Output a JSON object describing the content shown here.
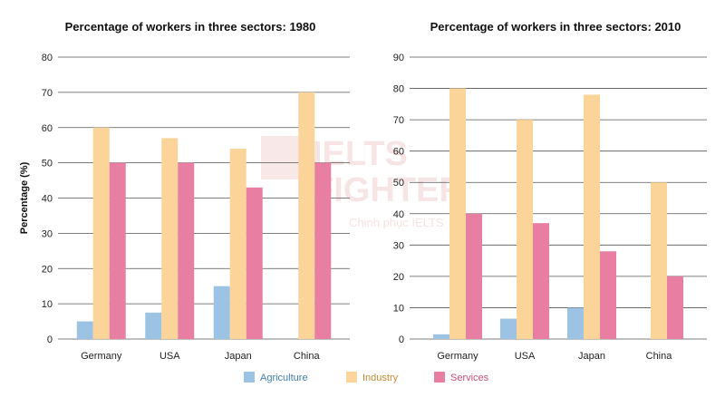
{
  "watermark": {
    "lines": [
      "IELTS",
      "FIGHTER"
    ],
    "sub": "Chinh phục IELTS"
  },
  "legend": [
    {
      "name": "Agriculture",
      "color": "#9cc3e4",
      "text_color": "#3f7fb0"
    },
    {
      "name": "Industry",
      "color": "#fbd49a",
      "text_color": "#c88a32"
    },
    {
      "name": "Services",
      "color": "#e87ea2",
      "text_color": "#c94d7a"
    }
  ],
  "chart_data": [
    {
      "type": "bar",
      "title": "Percentage of workers in three sectors: 1980",
      "ylabel": "Percentage (%)",
      "xlabel": "",
      "categories": [
        "Germany",
        "USA",
        "Japan",
        "China"
      ],
      "ylim": [
        0,
        80
      ],
      "yticks": [
        0,
        10,
        20,
        30,
        40,
        50,
        60,
        70,
        80
      ],
      "grid": true,
      "series": [
        {
          "name": "Agriculture",
          "values": [
            5,
            7.5,
            15,
            0
          ]
        },
        {
          "name": "Industry",
          "values": [
            60,
            57,
            54,
            70
          ]
        },
        {
          "name": "Services",
          "values": [
            50,
            50,
            43,
            50
          ]
        }
      ]
    },
    {
      "type": "bar",
      "title": "Percentage of workers in three sectors: 2010",
      "ylabel": "",
      "xlabel": "",
      "categories": [
        "Germany",
        "USA",
        "Japan",
        "China"
      ],
      "ylim": [
        0,
        90
      ],
      "yticks": [
        0,
        10,
        20,
        30,
        40,
        50,
        60,
        70,
        80,
        90
      ],
      "grid": true,
      "series": [
        {
          "name": "Agriculture",
          "values": [
            1.5,
            6.5,
            10,
            0
          ]
        },
        {
          "name": "Industry",
          "values": [
            80,
            70,
            78,
            50
          ]
        },
        {
          "name": "Services",
          "values": [
            40,
            37,
            28,
            20
          ]
        }
      ]
    }
  ]
}
